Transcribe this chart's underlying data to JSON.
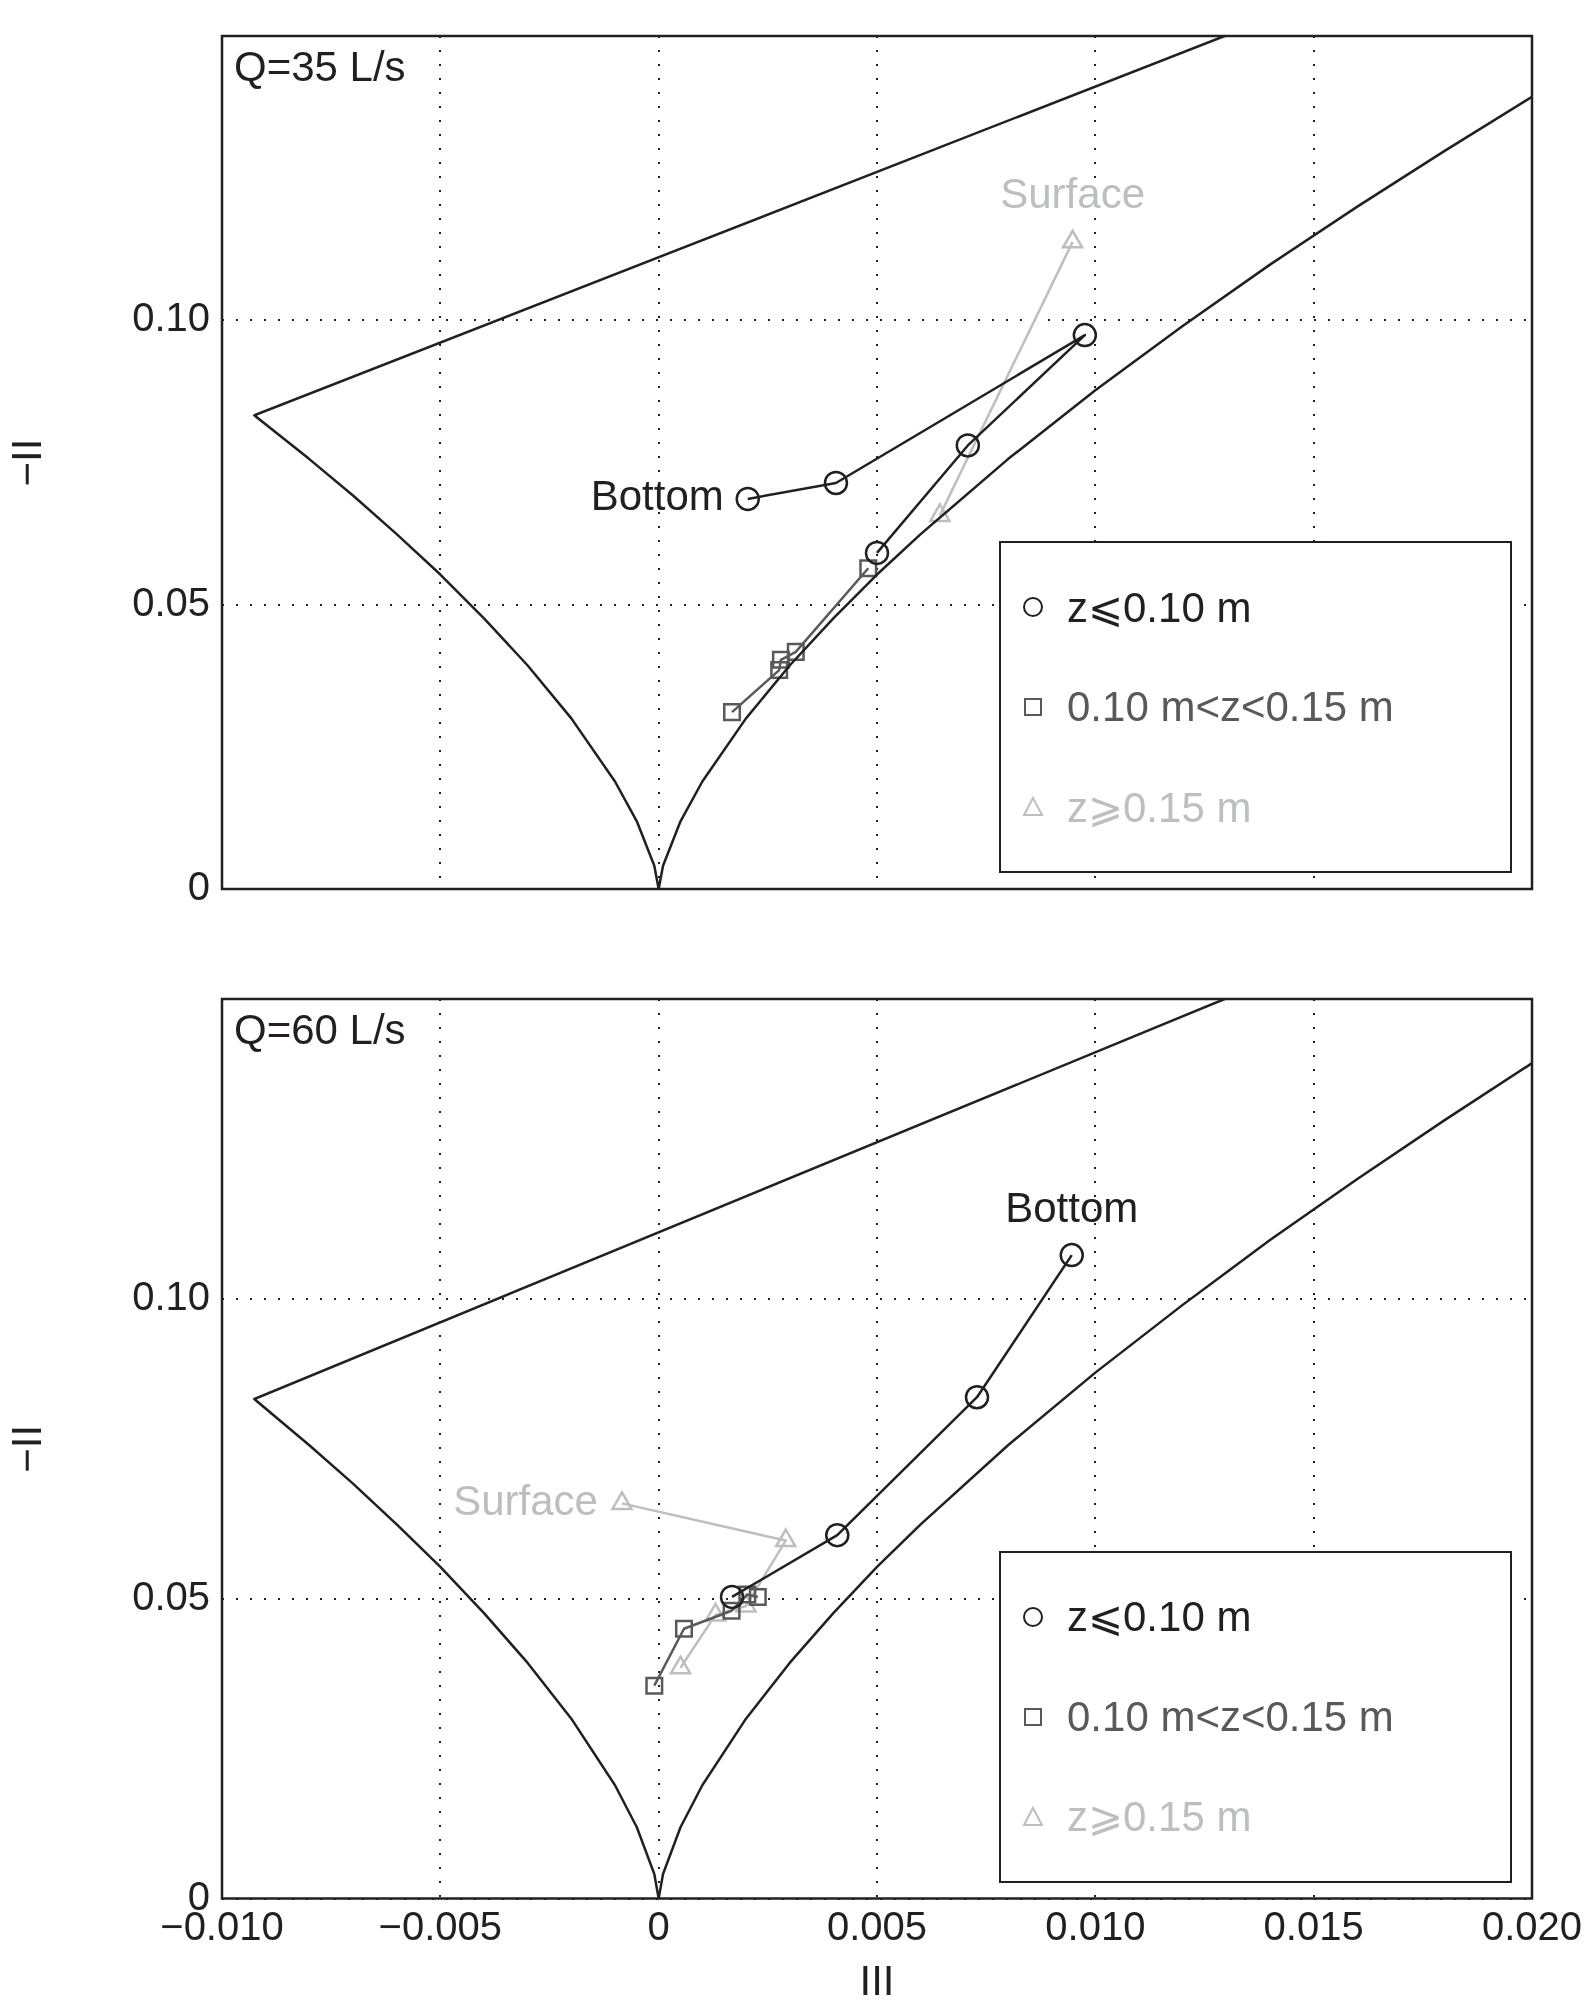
{
  "chart_data": [
    {
      "type": "line",
      "xlabel": null,
      "ylabel": "−II",
      "xlim": [
        -0.01,
        0.02
      ],
      "ylim": [
        0,
        0.15
      ],
      "xticks": [
        {
          "value": -0.01,
          "label": null
        },
        {
          "value": -0.005,
          "label": null
        },
        {
          "value": 0,
          "label": null
        },
        {
          "value": 0.005,
          "label": null
        },
        {
          "value": 0.01,
          "label": null
        },
        {
          "value": 0.015,
          "label": null
        },
        {
          "value": 0.02,
          "label": null
        }
      ],
      "yticks": [
        {
          "value": 0,
          "label": "0"
        },
        {
          "value": 0.05,
          "label": "0.05"
        },
        {
          "value": 0.1,
          "label": "0.10"
        }
      ],
      "grid": true,
      "legend": "bottom right",
      "tick_labels": "y",
      "annotations": [
        "Q=35 L/s",
        {
          "text": "Bottom",
          "x": 0.00204,
          "y": 0.0686
        },
        {
          "text": "Surface",
          "x": 0.00948,
          "y": 0.1138
        }
      ],
      "series": [
        {
          "color": "#231f20",
          "marker": "none",
          "x": [
            0.01296,
            -0.00926,
            -0.008,
            -0.007,
            -0.006,
            -0.005,
            -0.004,
            -0.003,
            -0.002,
            -0.001,
            -0.0005,
            -0.0001,
            0,
            0.0001,
            0.0005,
            0.001,
            0.002,
            0.003,
            0.004,
            0.005,
            0.006,
            0.008,
            0.01,
            0.012,
            0.014,
            0.016,
            0.018,
            0.02
          ],
          "values": [
            0.15,
            0.0833,
            0.0756,
            0.0692,
            0.0624,
            0.0553,
            0.0476,
            0.0393,
            0.03,
            0.0189,
            0.0119,
            0.0041,
            0,
            0.0041,
            0.0119,
            0.0189,
            0.03,
            0.0393,
            0.0476,
            0.0553,
            0.0624,
            0.0756,
            0.0877,
            0.099,
            0.1098,
            0.12,
            0.1298,
            0.1393
          ]
        },
        {
          "name": "z⩽0.10 m",
          "color": "#231f20",
          "marker": "circle",
          "x": [
            0.00204,
            0.00406,
            0.00976,
            0.00708,
            0.005
          ],
          "values": [
            0.0686,
            0.0714,
            0.0974,
            0.078,
            0.0591
          ]
        },
        {
          "name": "0.10 m<z<0.15 m",
          "color": "#58595b",
          "marker": "square",
          "x": [
            0.00168,
            0.00276,
            0.0028,
            0.00314,
            0.0048
          ],
          "values": [
            0.0311,
            0.0385,
            0.0403,
            0.0417,
            0.0564
          ]
        },
        {
          "name": "z⩾0.15 m",
          "color": "#bcbec0",
          "marker": "triangle",
          "x": [
            0.00644,
            0.00948
          ],
          "values": [
            0.0657,
            0.1138
          ]
        }
      ]
    },
    {
      "type": "line",
      "xlabel": "III",
      "ylabel": "−II",
      "xlim": [
        -0.01,
        0.02
      ],
      "ylim": [
        0,
        0.15
      ],
      "xticks": [
        {
          "value": -0.01,
          "label": "−0.010"
        },
        {
          "value": -0.005,
          "label": "−0.005"
        },
        0,
        {
          "value": 0.005,
          "label": "0.005"
        },
        {
          "value": 0.01,
          "label": "0.010"
        },
        {
          "value": 0.015,
          "label": "0.015"
        },
        {
          "value": 0.02,
          "label": "0.020"
        }
      ],
      "yticks": [
        0,
        0.05,
        {
          "value": 0.1,
          "label": "0.10"
        }
      ],
      "grid": true,
      "legend": "bottom right",
      "annotations": [
        "Q=60 L/s",
        {
          "text": "Bottom",
          "x": 0.00946,
          "y": 0.1073
        },
        {
          "text": "Surface",
          "x": -0.00084,
          "y": 0.0659
        }
      ],
      "series": [
        {
          "color": "#231f20",
          "marker": "none",
          "x": [
            0.01296,
            -0.00926,
            -0.008,
            -0.007,
            -0.006,
            -0.005,
            -0.004,
            -0.003,
            -0.002,
            -0.001,
            -0.0005,
            -0.0001,
            0,
            0.0001,
            0.0005,
            0.001,
            0.002,
            0.003,
            0.004,
            0.005,
            0.006,
            0.008,
            0.01,
            0.012,
            0.014,
            0.016,
            0.018,
            0.02
          ],
          "values": [
            0.15,
            0.0833,
            0.0756,
            0.0692,
            0.0624,
            0.0553,
            0.0476,
            0.0393,
            0.03,
            0.0189,
            0.0119,
            0.0041,
            0,
            0.0041,
            0.0119,
            0.0189,
            0.03,
            0.0393,
            0.0476,
            0.0553,
            0.0624,
            0.0756,
            0.0877,
            0.099,
            0.1098,
            0.12,
            0.1298,
            0.1393
          ]
        },
        {
          "name": "z⩽0.10 m",
          "color": "#231f20",
          "marker": "circle",
          "x": [
            0.00946,
            0.00729,
            0.00409,
            0.00168
          ],
          "values": [
            0.1073,
            0.0836,
            0.0606,
            0.0503
          ]
        },
        {
          "name": "0.10 m<z<0.15 m",
          "color": "#58595b",
          "marker": "square",
          "x": [
            -0.0001,
            0.00058,
            0.00167,
            0.00203,
            0.00227
          ],
          "values": [
            0.0355,
            0.045,
            0.048,
            0.0507,
            0.0503
          ]
        },
        {
          "name": "z⩾0.15 m",
          "color": "#bcbec0",
          "marker": "triangle",
          "x": [
            0.0005,
            0.0013,
            0.002,
            0.00291,
            -0.00084
          ],
          "values": [
            0.0385,
            0.0473,
            0.0488,
            0.0597,
            0.0659
          ]
        }
      ]
    }
  ]
}
